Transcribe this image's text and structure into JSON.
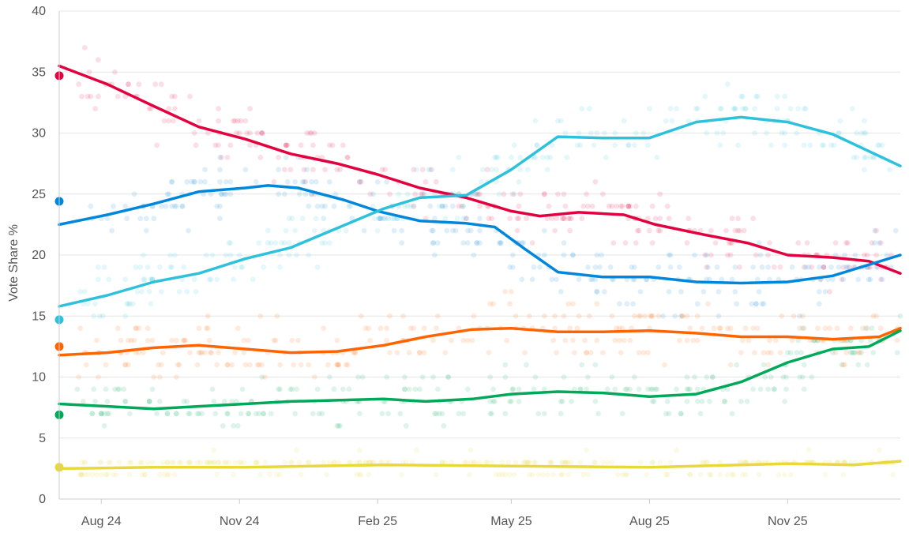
{
  "chart_data": {
    "type": "line",
    "title": "",
    "xlabel": "",
    "ylabel": "Vote Share %",
    "ylim": [
      0,
      40
    ],
    "y_ticks": [
      0,
      5,
      10,
      15,
      20,
      25,
      30,
      35,
      40
    ],
    "x_range": [
      "2024-07-04",
      "2026-01-15"
    ],
    "x_ticks": [
      {
        "date": "2024-08-01",
        "label": "Aug 24"
      },
      {
        "date": "2024-11-01",
        "label": "Nov 24"
      },
      {
        "date": "2025-02-01",
        "label": "Feb 25"
      },
      {
        "date": "2025-05-01",
        "label": "May 25"
      },
      {
        "date": "2025-08-01",
        "label": "Aug 25"
      },
      {
        "date": "2025-11-01",
        "label": "Nov 25"
      }
    ],
    "grid": true,
    "legend": "none",
    "series": [
      {
        "color": "#e3003f",
        "election_result": 34.7,
        "points": [
          [
            "2024-07-04",
            35.5
          ],
          [
            "2024-08-05",
            34.0
          ],
          [
            "2024-09-05",
            32.2
          ],
          [
            "2024-10-05",
            30.5
          ],
          [
            "2024-11-05",
            29.5
          ],
          [
            "2024-12-05",
            28.3
          ],
          [
            "2025-01-05",
            27.5
          ],
          [
            "2025-02-01",
            26.6
          ],
          [
            "2025-03-01",
            25.5
          ],
          [
            "2025-04-01",
            24.7
          ],
          [
            "2025-05-01",
            23.6
          ],
          [
            "2025-05-20",
            23.2
          ],
          [
            "2025-06-15",
            23.5
          ],
          [
            "2025-07-15",
            23.3
          ],
          [
            "2025-08-05",
            22.5
          ],
          [
            "2025-09-05",
            21.7
          ],
          [
            "2025-10-05",
            21.0
          ],
          [
            "2025-11-01",
            20.0
          ],
          [
            "2025-12-01",
            19.8
          ],
          [
            "2025-12-25",
            19.5
          ],
          [
            "2026-01-15",
            18.5
          ]
        ]
      },
      {
        "color": "#0087dc",
        "election_result": 24.4,
        "points": [
          [
            "2024-07-04",
            22.5
          ],
          [
            "2024-08-05",
            23.3
          ],
          [
            "2024-09-05",
            24.2
          ],
          [
            "2024-10-05",
            25.2
          ],
          [
            "2024-11-05",
            25.5
          ],
          [
            "2024-11-20",
            25.7
          ],
          [
            "2024-12-10",
            25.5
          ],
          [
            "2025-01-10",
            24.5
          ],
          [
            "2025-02-01",
            23.6
          ],
          [
            "2025-03-01",
            22.8
          ],
          [
            "2025-04-01",
            22.6
          ],
          [
            "2025-04-20",
            22.3
          ],
          [
            "2025-05-10",
            20.5
          ],
          [
            "2025-06-01",
            18.6
          ],
          [
            "2025-07-01",
            18.2
          ],
          [
            "2025-08-01",
            18.2
          ],
          [
            "2025-09-01",
            17.8
          ],
          [
            "2025-10-01",
            17.7
          ],
          [
            "2025-11-01",
            17.8
          ],
          [
            "2025-12-01",
            18.3
          ],
          [
            "2026-01-15",
            20.0
          ]
        ]
      },
      {
        "color": "#2ec1db",
        "election_result": 14.7,
        "points": [
          [
            "2024-07-04",
            15.8
          ],
          [
            "2024-08-05",
            16.7
          ],
          [
            "2024-09-05",
            17.8
          ],
          [
            "2024-10-05",
            18.5
          ],
          [
            "2024-11-05",
            19.7
          ],
          [
            "2024-12-05",
            20.6
          ],
          [
            "2025-01-05",
            22.2
          ],
          [
            "2025-02-05",
            23.8
          ],
          [
            "2025-03-01",
            24.7
          ],
          [
            "2025-04-01",
            24.9
          ],
          [
            "2025-05-01",
            27.0
          ],
          [
            "2025-06-01",
            29.7
          ],
          [
            "2025-07-01",
            29.6
          ],
          [
            "2025-08-01",
            29.6
          ],
          [
            "2025-09-01",
            30.9
          ],
          [
            "2025-10-01",
            31.3
          ],
          [
            "2025-11-01",
            30.9
          ],
          [
            "2025-12-01",
            29.9
          ],
          [
            "2026-01-15",
            27.3
          ]
        ]
      },
      {
        "color": "#ff6400",
        "election_result": 12.5,
        "points": [
          [
            "2024-07-04",
            11.8
          ],
          [
            "2024-08-05",
            12.0
          ],
          [
            "2024-09-05",
            12.4
          ],
          [
            "2024-10-05",
            12.6
          ],
          [
            "2024-11-05",
            12.3
          ],
          [
            "2024-12-05",
            12.0
          ],
          [
            "2025-01-05",
            12.1
          ],
          [
            "2025-02-05",
            12.6
          ],
          [
            "2025-03-05",
            13.3
          ],
          [
            "2025-04-05",
            13.9
          ],
          [
            "2025-05-01",
            14.0
          ],
          [
            "2025-06-01",
            13.7
          ],
          [
            "2025-07-01",
            13.7
          ],
          [
            "2025-08-01",
            13.8
          ],
          [
            "2025-09-01",
            13.6
          ],
          [
            "2025-10-01",
            13.3
          ],
          [
            "2025-11-01",
            13.3
          ],
          [
            "2025-12-01",
            13.1
          ],
          [
            "2026-01-01",
            13.3
          ],
          [
            "2026-01-15",
            14.0
          ]
        ]
      },
      {
        "color": "#00a85a",
        "election_result": 6.9,
        "points": [
          [
            "2024-07-04",
            7.8
          ],
          [
            "2024-08-05",
            7.6
          ],
          [
            "2024-09-05",
            7.4
          ],
          [
            "2024-10-05",
            7.6
          ],
          [
            "2024-11-05",
            7.8
          ],
          [
            "2024-12-05",
            8.0
          ],
          [
            "2025-01-05",
            8.1
          ],
          [
            "2025-02-05",
            8.2
          ],
          [
            "2025-03-05",
            8.0
          ],
          [
            "2025-04-05",
            8.2
          ],
          [
            "2025-05-01",
            8.6
          ],
          [
            "2025-06-01",
            8.8
          ],
          [
            "2025-07-01",
            8.7
          ],
          [
            "2025-08-01",
            8.4
          ],
          [
            "2025-09-01",
            8.6
          ],
          [
            "2025-10-01",
            9.6
          ],
          [
            "2025-11-01",
            11.2
          ],
          [
            "2025-12-01",
            12.3
          ],
          [
            "2025-12-25",
            12.5
          ],
          [
            "2026-01-15",
            13.8
          ]
        ]
      },
      {
        "color": "#e8d83a",
        "election_result": 2.6,
        "points": [
          [
            "2024-07-04",
            2.5
          ],
          [
            "2024-09-05",
            2.6
          ],
          [
            "2024-11-05",
            2.6
          ],
          [
            "2025-02-05",
            2.8
          ],
          [
            "2025-05-01",
            2.7
          ],
          [
            "2025-08-01",
            2.6
          ],
          [
            "2025-11-01",
            2.9
          ],
          [
            "2025-12-15",
            2.8
          ],
          [
            "2026-01-15",
            3.1
          ]
        ]
      }
    ]
  }
}
